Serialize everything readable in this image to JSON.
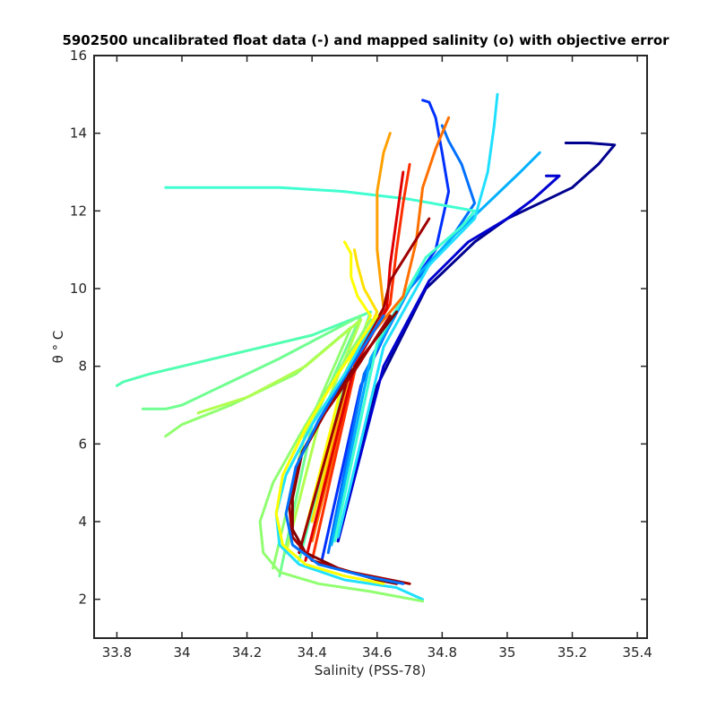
{
  "chart_data": {
    "type": "line",
    "title": "5902500 uncalibrated float data (-) and mapped salinity (o) with objective error",
    "xlabel": "Salinity (PSS-78)",
    "ylabel": "θ ° C",
    "xlim": [
      33.73,
      35.43
    ],
    "ylim": [
      1.0,
      16.0
    ],
    "xticks": [
      "33.8",
      "34",
      "34.2",
      "34.4",
      "34.6",
      "34.8",
      "35",
      "35.2",
      "35.4"
    ],
    "xtick_values": [
      33.8,
      34.0,
      34.2,
      34.4,
      34.6,
      34.8,
      35.0,
      35.2,
      35.4
    ],
    "yticks": [
      "2",
      "4",
      "6",
      "8",
      "10",
      "12",
      "14",
      "16"
    ],
    "ytick_values": [
      2,
      4,
      6,
      8,
      10,
      12,
      14,
      16
    ],
    "colormap": "jet",
    "grid": false,
    "legend": "none",
    "series": [
      {
        "color": "#00008f",
        "x": [
          34.48,
          34.6,
          34.75,
          34.9,
          35.0,
          35.1,
          35.2,
          35.28,
          35.33,
          35.25,
          35.18
        ],
        "y": [
          3.5,
          7.5,
          10.0,
          11.2,
          11.8,
          12.2,
          12.6,
          13.2,
          13.7,
          13.75,
          13.75
        ]
      },
      {
        "color": "#0000d0",
        "x": [
          34.48,
          34.62,
          34.76,
          34.88,
          35.0,
          35.08,
          35.16,
          35.12
        ],
        "y": [
          3.5,
          8.0,
          10.2,
          11.2,
          11.8,
          12.3,
          12.9,
          12.9
        ]
      },
      {
        "color": "#0030ff",
        "x": [
          34.43,
          34.55,
          34.68,
          34.78,
          34.82,
          34.8,
          34.78,
          34.76,
          34.74
        ],
        "y": [
          3.0,
          7.5,
          9.8,
          11.0,
          12.5,
          13.5,
          14.4,
          14.8,
          14.85
        ]
      },
      {
        "color": "#0070ff",
        "x": [
          34.45,
          34.56,
          34.7,
          34.82,
          34.9,
          34.86,
          34.82,
          34.8
        ],
        "y": [
          3.2,
          7.8,
          10.0,
          11.2,
          12.2,
          13.2,
          13.8,
          14.2
        ]
      },
      {
        "color": "#00b0ff",
        "x": [
          34.46,
          34.58,
          34.72,
          34.84,
          34.94,
          35.04,
          35.1
        ],
        "y": [
          3.4,
          8.2,
          10.3,
          11.4,
          12.2,
          13.0,
          13.5
        ]
      },
      {
        "color": "#20e0ff",
        "x": [
          34.48,
          34.62,
          34.76,
          34.9,
          34.94,
          34.96,
          34.97
        ],
        "y": [
          3.6,
          8.5,
          10.6,
          11.8,
          13.0,
          14.2,
          15.0
        ]
      },
      {
        "color": "#40ffd0",
        "x": [
          34.47,
          34.6,
          34.75,
          34.86,
          34.9,
          34.7,
          34.5,
          34.3,
          34.1,
          33.95
        ],
        "y": [
          3.5,
          8.6,
          10.8,
          11.6,
          12.0,
          12.3,
          12.5,
          12.6,
          12.6,
          12.6
        ]
      },
      {
        "color": "#50ffb0",
        "x": [
          34.36,
          34.5,
          34.58,
          34.4,
          34.2,
          34.0,
          33.9,
          33.82,
          33.8
        ],
        "y": [
          3.0,
          7.5,
          9.4,
          8.8,
          8.4,
          8.0,
          7.8,
          7.6,
          7.5
        ]
      },
      {
        "color": "#70ff90",
        "x": [
          34.3,
          34.4,
          34.55,
          34.3,
          34.1,
          34.0,
          33.95,
          33.88
        ],
        "y": [
          2.6,
          6.5,
          9.3,
          8.2,
          7.4,
          7.0,
          6.9,
          6.9
        ]
      },
      {
        "color": "#90ff70",
        "x": [
          34.28,
          34.38,
          34.52,
          34.35,
          34.15,
          34.0,
          33.95
        ],
        "y": [
          2.8,
          6.3,
          9.0,
          7.8,
          7.0,
          6.5,
          6.2
        ]
      },
      {
        "color": "#b0ff50",
        "x": [
          34.32,
          34.42,
          34.55,
          34.38,
          34.2,
          34.05
        ],
        "y": [
          3.2,
          6.5,
          9.2,
          8.0,
          7.2,
          6.8
        ]
      },
      {
        "color": "#ffff00",
        "x": [
          34.38,
          34.5,
          34.58,
          34.54,
          34.52,
          34.52,
          34.5
        ],
        "y": [
          3.8,
          7.8,
          9.3,
          9.8,
          10.3,
          10.9,
          11.2
        ]
      },
      {
        "color": "#ffe000",
        "x": [
          34.4,
          34.52,
          34.6,
          34.56,
          34.54,
          34.53
        ],
        "y": [
          4.0,
          8.0,
          9.4,
          10.0,
          10.6,
          11.0
        ]
      },
      {
        "color": "#ffa000",
        "x": [
          34.4,
          34.52,
          34.62,
          34.6,
          34.6,
          34.62,
          34.64
        ],
        "y": [
          3.6,
          8.0,
          9.5,
          11.0,
          12.5,
          13.5,
          14.0
        ]
      },
      {
        "color": "#ff7000",
        "x": [
          34.4,
          34.55,
          34.68,
          34.72,
          34.74,
          34.78,
          34.82
        ],
        "y": [
          3.5,
          8.5,
          9.8,
          11.2,
          12.6,
          13.6,
          14.4
        ]
      },
      {
        "color": "#ff3000",
        "x": [
          34.4,
          34.54,
          34.64,
          34.66,
          34.68,
          34.7
        ],
        "y": [
          3.0,
          8.2,
          9.6,
          11.0,
          12.2,
          13.2
        ]
      },
      {
        "color": "#e00000",
        "x": [
          34.38,
          34.53,
          34.63,
          34.64,
          34.66,
          34.68
        ],
        "y": [
          3.0,
          8.0,
          9.5,
          10.6,
          11.8,
          13.0
        ]
      },
      {
        "color": "#a00000",
        "x": [
          34.36,
          34.52,
          34.62,
          34.64,
          34.7,
          34.76
        ],
        "y": [
          3.2,
          8.0,
          9.5,
          10.2,
          11.0,
          11.8
        ]
      },
      {
        "color": "#800000",
        "x": [
          34.66,
          34.55,
          34.45,
          34.37,
          34.34,
          34.34,
          34.38,
          34.48,
          34.6,
          34.66
        ],
        "y": [
          9.4,
          8.2,
          7.0,
          5.8,
          4.6,
          3.8,
          3.2,
          2.8,
          2.5,
          2.4
        ]
      },
      {
        "color": "#a00000",
        "x": [
          34.64,
          34.54,
          34.44,
          34.36,
          34.33,
          34.34,
          34.4,
          34.52,
          34.64,
          34.7
        ],
        "y": [
          9.3,
          8.0,
          6.8,
          5.6,
          4.4,
          3.6,
          3.0,
          2.7,
          2.5,
          2.4
        ]
      },
      {
        "color": "#0070ff",
        "x": [
          34.62,
          34.52,
          34.42,
          34.35,
          34.32,
          34.34,
          34.42,
          34.56,
          34.68
        ],
        "y": [
          9.3,
          8.0,
          6.6,
          5.4,
          4.2,
          3.4,
          2.9,
          2.6,
          2.4
        ]
      },
      {
        "color": "#20e0ff",
        "x": [
          34.6,
          34.5,
          34.4,
          34.32,
          34.29,
          34.3,
          34.36,
          34.5,
          34.66,
          34.74
        ],
        "y": [
          9.3,
          7.8,
          6.5,
          5.2,
          4.2,
          3.4,
          2.9,
          2.5,
          2.3,
          2.0
        ]
      },
      {
        "color": "#90ff70",
        "x": [
          34.58,
          34.46,
          34.36,
          34.28,
          34.24,
          34.25,
          34.3,
          34.42,
          34.58,
          34.74
        ],
        "y": [
          9.2,
          7.6,
          6.2,
          5.0,
          4.0,
          3.2,
          2.7,
          2.4,
          2.2,
          1.95
        ]
      },
      {
        "color": "#ffff00",
        "x": [
          34.6,
          34.48,
          34.38,
          34.31,
          34.29,
          34.31,
          34.38,
          34.5,
          34.62
        ],
        "y": [
          9.3,
          7.8,
          6.4,
          5.2,
          4.2,
          3.4,
          2.9,
          2.6,
          2.4
        ]
      }
    ]
  }
}
